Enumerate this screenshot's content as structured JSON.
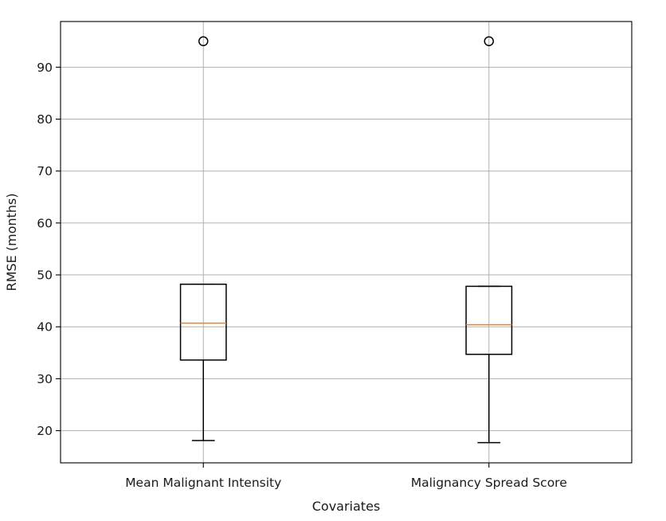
{
  "chart_data": {
    "type": "box",
    "title": "",
    "xlabel": "Covariates",
    "ylabel": "RMSE (months)",
    "ylim": [
      13.8,
      98.8
    ],
    "yticks": [
      20,
      30,
      40,
      50,
      60,
      70,
      80,
      90
    ],
    "categories": [
      "Mean Malignant Intensity",
      "Malignancy Spread Score"
    ],
    "boxes": [
      {
        "category": "Mean Malignant Intensity",
        "whisker_low": 18.1,
        "q1": 33.6,
        "median": 40.7,
        "q3": 48.2,
        "whisker_high": 48.2,
        "outliers": [
          95.0
        ]
      },
      {
        "category": "Malignancy Spread Score",
        "whisker_low": 17.7,
        "q1": 34.7,
        "median": 40.4,
        "q3": 47.8,
        "whisker_high": 47.8,
        "outliers": [
          95.0
        ]
      }
    ],
    "grid": true,
    "colors": {
      "box": "#000000",
      "median": "#ff7f0e",
      "grid": "#b0b0b0",
      "outlier": "#000000"
    }
  }
}
